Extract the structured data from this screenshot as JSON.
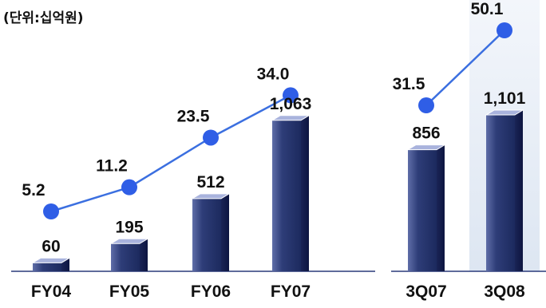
{
  "chart_data": {
    "type": "bar",
    "unit_label": "(단위:십억원)",
    "title": "",
    "xlabel": "",
    "ylabel": "",
    "groups": [
      {
        "categories": [
          "FY04",
          "FY05",
          "FY06",
          "FY07"
        ],
        "bar_values": [
          "60",
          "195",
          "512",
          "1,063"
        ],
        "line_values": [
          "5.2",
          "11.2",
          "23.5",
          "34.0"
        ]
      },
      {
        "categories": [
          "3Q07",
          "3Q08"
        ],
        "bar_values": [
          "856",
          "1,101"
        ],
        "line_values": [
          "31.5",
          "50.1"
        ]
      }
    ],
    "highlighted_category": "3Q08",
    "colors": {
      "bar_front": "#23336a",
      "bar_side": "#11194a",
      "bar_top": "#a9b3dd",
      "line": "#3b6fe0",
      "marker": "#2f5ee6",
      "highlight_band": "#e6edf6",
      "axis": "#2a3a7a"
    }
  }
}
